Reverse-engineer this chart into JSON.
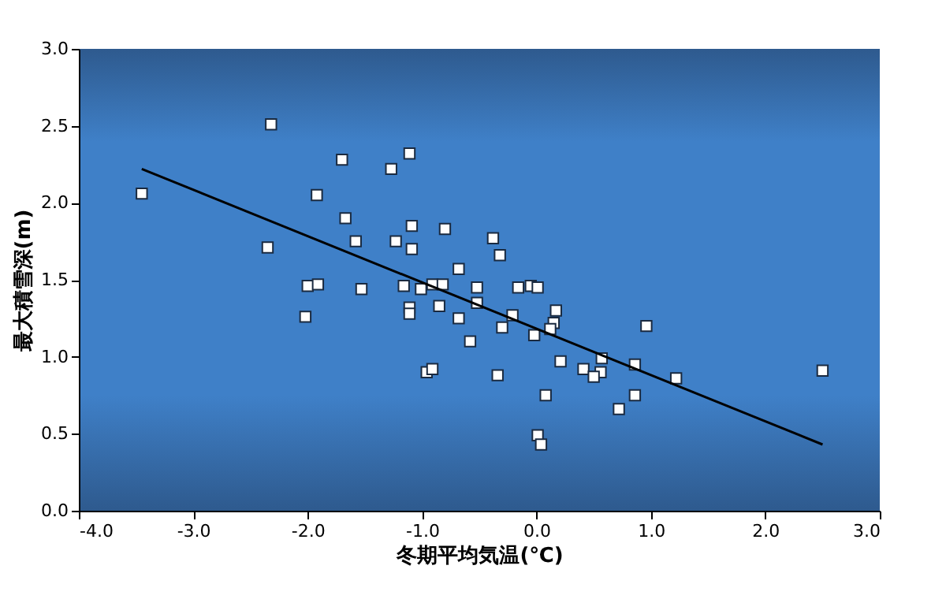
{
  "chart_data": {
    "type": "scatter",
    "xlabel": "冬期平均気温(℃)",
    "ylabel": "最大積雪深(m)",
    "xlim": [
      -4,
      3
    ],
    "ylim": [
      0,
      3
    ],
    "xticks": [
      {
        "value": -4,
        "label": "-4.0"
      },
      {
        "value": -3,
        "label": "-3.0"
      },
      {
        "value": -2,
        "label": "-2.0"
      },
      {
        "value": -1,
        "label": "-1.0"
      },
      {
        "value": 0,
        "label": "0.0"
      },
      {
        "value": 1,
        "label": "1.0"
      },
      {
        "value": 2,
        "label": "2.0"
      },
      {
        "value": 3,
        "label": "3.0"
      }
    ],
    "yticks": [
      {
        "value": 0,
        "label": "0.0"
      },
      0.5,
      {
        "value": 1,
        "label": "1.0"
      },
      1.5,
      {
        "value": 2,
        "label": "2.0"
      },
      2.5,
      {
        "value": 3,
        "label": "3.0"
      }
    ],
    "grid": false,
    "series": [
      {
        "marker": "square",
        "color": "#ffffff",
        "x": [
          -3.45,
          -2.32,
          -2.35,
          -1.7,
          -1.92,
          -1.67,
          -1.58,
          -2.0,
          -1.91,
          -2.02,
          -1.53,
          -1.11,
          -1.27,
          -1.09,
          -0.8,
          -1.23,
          -1.09,
          -0.38,
          -0.32,
          -0.68,
          -1.16,
          -1.01,
          -0.91,
          -0.82,
          -0.52,
          -0.16,
          -0.05,
          0.01,
          -0.52,
          -1.11,
          -1.11,
          -0.85,
          -0.68,
          -0.21,
          -0.3,
          0.17,
          0.15,
          0.12,
          -0.02,
          -0.58,
          0.21,
          0.57,
          0.41,
          -0.96,
          -0.91,
          -0.34,
          0.56,
          0.5,
          0.86,
          1.22,
          0.96,
          0.86,
          0.72,
          0.08,
          0.01,
          0.04,
          2.5
        ],
        "values": [
          2.06,
          2.51,
          1.71,
          2.28,
          2.05,
          1.9,
          1.75,
          1.46,
          1.47,
          1.26,
          1.44,
          2.32,
          2.22,
          1.85,
          1.83,
          1.75,
          1.7,
          1.77,
          1.66,
          1.57,
          1.46,
          1.44,
          1.47,
          1.47,
          1.45,
          1.45,
          1.46,
          1.45,
          1.35,
          1.32,
          1.28,
          1.33,
          1.25,
          1.27,
          1.19,
          1.3,
          1.22,
          1.18,
          1.14,
          1.1,
          0.97,
          0.99,
          0.92,
          0.9,
          0.92,
          0.88,
          0.9,
          0.87,
          0.95,
          0.86,
          1.2,
          0.75,
          0.66,
          0.75,
          0.49,
          0.43,
          0.91
        ]
      },
      {
        "type": "line",
        "color": "#000000",
        "x": [
          -3.45,
          2.5
        ],
        "values": [
          2.22,
          0.43
        ]
      }
    ]
  }
}
